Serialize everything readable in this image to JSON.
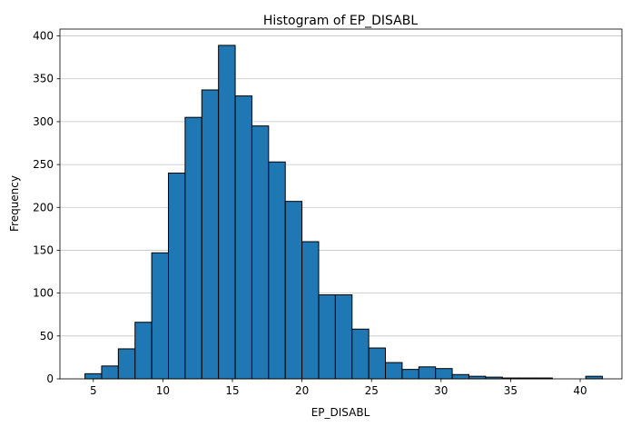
{
  "chart_data": {
    "type": "bar",
    "title": "Histogram of EP_DISABL",
    "xlabel": "EP_DISABL",
    "ylabel": "Frequency",
    "xlim": [
      2.6,
      43.0
    ],
    "ylim": [
      0,
      408
    ],
    "x_ticks": [
      5,
      10,
      15,
      20,
      25,
      30,
      35,
      40
    ],
    "y_ticks": [
      0,
      50,
      100,
      150,
      200,
      250,
      300,
      350,
      400
    ],
    "grid": "y-axis",
    "bar_color": "#1f77b4",
    "edge_color": "#000000",
    "bins": [
      {
        "x0": 4.4,
        "x1": 5.6,
        "value": 6
      },
      {
        "x0": 5.6,
        "x1": 6.8,
        "value": 15
      },
      {
        "x0": 6.8,
        "x1": 8.0,
        "value": 35
      },
      {
        "x0": 8.0,
        "x1": 9.2,
        "value": 66
      },
      {
        "x0": 9.2,
        "x1": 10.4,
        "value": 147
      },
      {
        "x0": 10.4,
        "x1": 11.6,
        "value": 240
      },
      {
        "x0": 11.6,
        "x1": 12.8,
        "value": 305
      },
      {
        "x0": 12.8,
        "x1": 14.0,
        "value": 337
      },
      {
        "x0": 14.0,
        "x1": 15.2,
        "value": 389
      },
      {
        "x0": 15.2,
        "x1": 16.4,
        "value": 330
      },
      {
        "x0": 16.4,
        "x1": 17.6,
        "value": 295
      },
      {
        "x0": 17.6,
        "x1": 18.8,
        "value": 253
      },
      {
        "x0": 18.8,
        "x1": 20.0,
        "value": 207
      },
      {
        "x0": 20.0,
        "x1": 21.2,
        "value": 160
      },
      {
        "x0": 21.2,
        "x1": 22.4,
        "value": 98
      },
      {
        "x0": 22.4,
        "x1": 23.6,
        "value": 98
      },
      {
        "x0": 23.6,
        "x1": 24.8,
        "value": 58
      },
      {
        "x0": 24.8,
        "x1": 26.0,
        "value": 36
      },
      {
        "x0": 26.0,
        "x1": 27.2,
        "value": 19
      },
      {
        "x0": 27.2,
        "x1": 28.4,
        "value": 11
      },
      {
        "x0": 28.4,
        "x1": 29.6,
        "value": 14
      },
      {
        "x0": 29.6,
        "x1": 30.8,
        "value": 12
      },
      {
        "x0": 30.8,
        "x1": 32.0,
        "value": 5
      },
      {
        "x0": 32.0,
        "x1": 33.2,
        "value": 3
      },
      {
        "x0": 33.2,
        "x1": 34.4,
        "value": 2
      },
      {
        "x0": 34.4,
        "x1": 35.6,
        "value": 1
      },
      {
        "x0": 35.6,
        "x1": 36.8,
        "value": 1
      },
      {
        "x0": 36.8,
        "x1": 38.0,
        "value": 1
      },
      {
        "x0": 38.0,
        "x1": 39.2,
        "value": 0
      },
      {
        "x0": 39.2,
        "x1": 40.4,
        "value": 0
      },
      {
        "x0": 40.4,
        "x1": 41.6,
        "value": 3
      }
    ]
  }
}
